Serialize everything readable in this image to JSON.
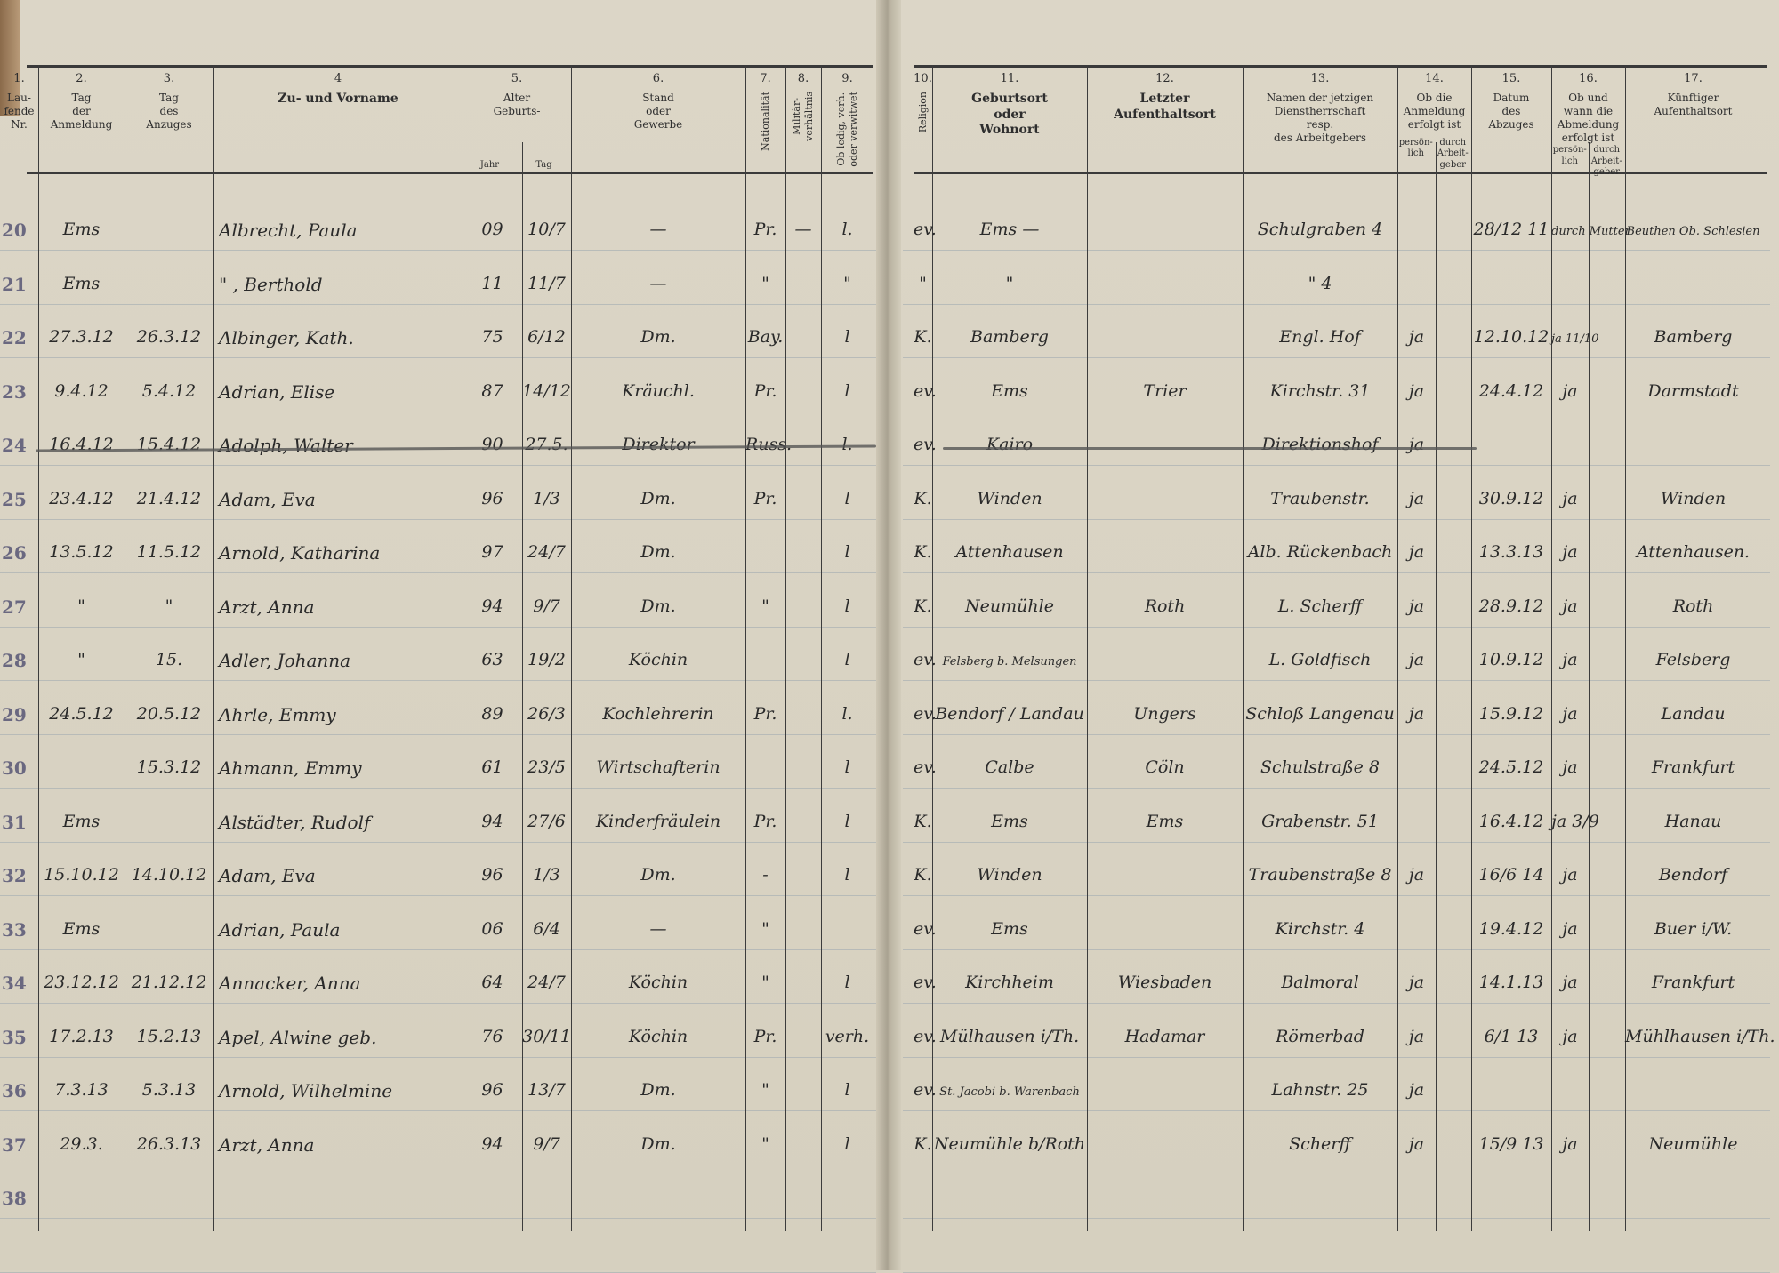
{
  "headers_left": [
    {
      "num": "1.",
      "title": "Lau-\nfende\nNr."
    },
    {
      "num": "2.",
      "title": "Tag\nder\nAnmeldung"
    },
    {
      "num": "3.",
      "title": "Tag\ndes\nAnzuges"
    },
    {
      "num": "4",
      "title": "Zu- und Vorname"
    },
    {
      "num": "5.",
      "title": "Alter\nGeburts-",
      "sub": [
        "Jahr",
        "Tag"
      ]
    },
    {
      "num": "6.",
      "title": "Stand\noder\nGewerbe"
    },
    {
      "num": "7.",
      "title": "Nationalität"
    },
    {
      "num": "8.",
      "title": "Militär-\nverhältnis"
    },
    {
      "num": "9.",
      "title": "Ob ledig, verh.\noder verwitwet"
    }
  ],
  "headers_right": [
    {
      "num": "10.",
      "title": "Religion"
    },
    {
      "num": "11.",
      "title": "Geburtsort\noder\nWohnort"
    },
    {
      "num": "12.",
      "title": "Letzter\nAufenthaltsort"
    },
    {
      "num": "13.",
      "title": "Namen der jetzigen\nDienstherrschaft\nresp.\ndes Arbeitgebers"
    },
    {
      "num": "14.",
      "title": "Ob die\nAnmeldung\nerfolgt ist",
      "sub": [
        "persön-\nlich",
        "durch\nArbeit-\ngeber"
      ]
    },
    {
      "num": "15.",
      "title": "Datum\ndes\nAbzuges"
    },
    {
      "num": "16.",
      "title": "Ob und\nwann die\nAbmeldung\nerfolgt ist",
      "sub": [
        "persön-\nlich",
        "durch\nArbeit-\ngeber"
      ]
    },
    {
      "num": "17.",
      "title": "Künftiger\nAufenthaltsort"
    }
  ],
  "rows": [
    {
      "lfd": "20",
      "anm": "Ems",
      "anz": "",
      "name": "Albrecht, Paula",
      "jahr": "09",
      "tag": "10/7",
      "stand": "—",
      "nat": "Pr.",
      "mil": "—",
      "fam": "l.",
      "rel": "ev.",
      "geb": "Ems —",
      "letzt": "",
      "dienst": "Schulgraben 4",
      "pers": "",
      "arb": "",
      "datum": "28/12 11",
      "abm_pers": "durch Mutter",
      "abm_arb": "",
      "kuenft": "Beuthen Ob. Schlesien"
    },
    {
      "lfd": "21",
      "anm": "Ems",
      "anz": "",
      "name": "\"  , Berthold",
      "jahr": "11",
      "tag": "11/7",
      "stand": "—",
      "nat": "\"",
      "mil": "",
      "fam": "\"",
      "rel": "\"",
      "geb": "\"",
      "letzt": "",
      "dienst": "\" 4",
      "pers": "",
      "arb": "",
      "datum": "",
      "abm_pers": "",
      "abm_arb": "",
      "kuenft": ""
    },
    {
      "lfd": "22",
      "anm": "27.3.12",
      "anz": "26.3.12",
      "name": "Albinger, Kath.",
      "jahr": "75",
      "tag": "6/12",
      "stand": "Dm.",
      "nat": "Bay.",
      "mil": "",
      "fam": "l",
      "rel": "K.",
      "geb": "Bamberg",
      "letzt": "",
      "dienst": "Engl. Hof",
      "pers": "ja",
      "arb": "",
      "datum": "12.10.12",
      "abm_pers": "ja 11/10",
      "abm_arb": "",
      "kuenft": "Bamberg"
    },
    {
      "lfd": "23",
      "anm": "9.4.12",
      "anz": "5.4.12",
      "name": "Adrian, Elise",
      "jahr": "87",
      "tag": "14/12",
      "stand": "Kräuchl.",
      "nat": "Pr.",
      "mil": "",
      "fam": "l",
      "rel": "ev.",
      "geb": "Ems",
      "letzt": "Trier",
      "dienst": "Kirchstr. 31",
      "pers": "ja",
      "arb": "",
      "datum": "24.4.12",
      "abm_pers": "ja",
      "abm_arb": "",
      "kuenft": "Darmstadt"
    },
    {
      "lfd": "24",
      "anm": "16.4.12",
      "anz": "15.4.12",
      "name": "Adolph, Walter",
      "jahr": "90",
      "tag": "27.5.",
      "stand": "Direktor",
      "nat": "Russ.",
      "mil": "",
      "fam": "l.",
      "rel": "ev.",
      "geb": "Kairo",
      "letzt": "",
      "dienst": "Direktionshof",
      "pers": "ja",
      "arb": "",
      "datum": "",
      "abm_pers": "",
      "abm_arb": "",
      "kuenft": "",
      "struck": true
    },
    {
      "lfd": "25",
      "anm": "23.4.12",
      "anz": "21.4.12",
      "name": "Adam, Eva",
      "jahr": "96",
      "tag": "1/3",
      "stand": "Dm.",
      "nat": "Pr.",
      "mil": "",
      "fam": "l",
      "rel": "K.",
      "geb": "Winden",
      "letzt": "",
      "dienst": "Traubenstr.",
      "pers": "ja",
      "arb": "",
      "datum": "30.9.12",
      "abm_pers": "ja",
      "abm_arb": "",
      "kuenft": "Winden"
    },
    {
      "lfd": "26",
      "anm": "13.5.12",
      "anz": "11.5.12",
      "name": "Arnold, Katharina",
      "jahr": "97",
      "tag": "24/7",
      "stand": "Dm.",
      "nat": "",
      "mil": "",
      "fam": "l",
      "rel": "K.",
      "geb": "Attenhausen",
      "letzt": "",
      "dienst": "Alb. Rückenbach",
      "pers": "ja",
      "arb": "",
      "datum": "13.3.13",
      "abm_pers": "ja",
      "abm_arb": "",
      "kuenft": "Attenhausen."
    },
    {
      "lfd": "27",
      "anm": "\"",
      "anz": "\"",
      "name": "Arzt, Anna",
      "jahr": "94",
      "tag": "9/7",
      "stand": "Dm.",
      "nat": "\"",
      "mil": "",
      "fam": "l",
      "rel": "K.",
      "geb": "Neumühle",
      "letzt": "Roth",
      "dienst": "L. Scherff",
      "pers": "ja",
      "arb": "",
      "datum": "28.9.12",
      "abm_pers": "ja",
      "abm_arb": "",
      "kuenft": "Roth"
    },
    {
      "lfd": "28",
      "anm": "\"",
      "anz": "15.",
      "name": "Adler, Johanna",
      "jahr": "63",
      "tag": "19/2",
      "stand": "Köchin",
      "nat": "",
      "mil": "",
      "fam": "l",
      "rel": "ev.",
      "geb": "Felsberg b. Melsungen",
      "letzt": "",
      "dienst": "L. Goldfisch",
      "pers": "ja",
      "arb": "",
      "datum": "10.9.12",
      "abm_pers": "ja",
      "abm_arb": "",
      "kuenft": "Felsberg"
    },
    {
      "lfd": "29",
      "anm": "24.5.12",
      "anz": "20.5.12",
      "name": "Ahrle, Emmy",
      "jahr": "89",
      "tag": "26/3",
      "stand": "Kochlehrerin",
      "nat": "Pr.",
      "mil": "",
      "fam": "l.",
      "rel": "ev.",
      "geb": "Bendorf / Landau",
      "letzt": "Ungers",
      "dienst": "Schloß Langenau",
      "pers": "ja",
      "arb": "",
      "datum": "15.9.12",
      "abm_pers": "ja",
      "abm_arb": "",
      "kuenft": "Landau"
    },
    {
      "lfd": "30",
      "anm": "",
      "anz": "15.3.12",
      "name": "Ahmann, Emmy",
      "jahr": "61",
      "tag": "23/5",
      "stand": "Wirtschafterin",
      "nat": "",
      "mil": "",
      "fam": "l",
      "rel": "ev.",
      "geb": "Calbe",
      "letzt": "Cöln",
      "dienst": "Schulstraße 8",
      "pers": "",
      "arb": "",
      "datum": "24.5.12",
      "abm_pers": "ja",
      "abm_arb": "",
      "kuenft": "Frankfurt"
    },
    {
      "lfd": "31",
      "anm": "Ems",
      "anz": "",
      "name": "Alstädter, Rudolf",
      "jahr": "94",
      "tag": "27/6",
      "stand": "Kinderfräulein",
      "nat": "Pr.",
      "mil": "",
      "fam": "l",
      "rel": "K.",
      "geb": "Ems",
      "letzt": "Ems",
      "dienst": "Grabenstr. 51",
      "pers": "",
      "arb": "",
      "datum": "16.4.12",
      "abm_pers": "ja 3/9",
      "abm_arb": "",
      "kuenft": "Hanau"
    },
    {
      "lfd": "32",
      "anm": "15.10.12",
      "anz": "14.10.12",
      "name": "Adam, Eva",
      "jahr": "96",
      "tag": "1/3",
      "stand": "Dm.",
      "nat": "-",
      "mil": "",
      "fam": "l",
      "rel": "K.",
      "geb": "Winden",
      "letzt": "",
      "dienst": "Traubenstraße 8",
      "pers": "ja",
      "arb": "",
      "datum": "16/6 14",
      "abm_pers": "ja",
      "abm_arb": "",
      "kuenft": "Bendorf"
    },
    {
      "lfd": "33",
      "anm": "Ems",
      "anz": "",
      "name": "Adrian, Paula",
      "jahr": "06",
      "tag": "6/4",
      "stand": "—",
      "nat": "\"",
      "mil": "",
      "fam": "",
      "rel": "ev.",
      "geb": "Ems",
      "letzt": "",
      "dienst": "Kirchstr. 4",
      "pers": "",
      "arb": "",
      "datum": "19.4.12",
      "abm_pers": "ja",
      "abm_arb": "",
      "kuenft": "Buer i/W."
    },
    {
      "lfd": "34",
      "anm": "23.12.12",
      "anz": "21.12.12",
      "name": "Annacker, Anna",
      "jahr": "64",
      "tag": "24/7",
      "stand": "Köchin",
      "nat": "\"",
      "mil": "",
      "fam": "l",
      "rel": "ev.",
      "geb": "Kirchheim",
      "letzt": "Wiesbaden",
      "dienst": "Balmoral",
      "pers": "ja",
      "arb": "",
      "datum": "14.1.13",
      "abm_pers": "ja",
      "abm_arb": "",
      "kuenft": "Frankfurt"
    },
    {
      "lfd": "35",
      "anm": "17.2.13",
      "anz": "15.2.13",
      "name": "Apel, Alwine geb.",
      "jahr": "76",
      "tag": "30/11",
      "stand": "Köchin",
      "nat": "Pr.",
      "mil": "",
      "fam": "verh.",
      "rel": "ev.",
      "geb": "Mülhausen i/Th.",
      "letzt": "Hadamar",
      "dienst": "Römerbad",
      "pers": "ja",
      "arb": "",
      "datum": "6/1 13",
      "abm_pers": "ja",
      "abm_arb": "",
      "kuenft": "Mühlhausen i/Th."
    },
    {
      "lfd": "36",
      "anm": "7.3.13",
      "anz": "5.3.13",
      "name": "Arnold, Wilhelmine",
      "jahr": "96",
      "tag": "13/7",
      "stand": "Dm.",
      "nat": "\"",
      "mil": "",
      "fam": "l",
      "rel": "ev.",
      "geb": "St. Jacobi b. Warenbach",
      "letzt": "",
      "dienst": "Lahnstr. 25",
      "pers": "ja",
      "arb": "",
      "datum": "",
      "abm_pers": "",
      "abm_arb": "",
      "kuenft": ""
    },
    {
      "lfd": "37",
      "anm": "29.3.",
      "anz": "26.3.13",
      "name": "Arzt, Anna",
      "jahr": "94",
      "tag": "9/7",
      "stand": "Dm.",
      "nat": "\"",
      "mil": "",
      "fam": "l",
      "rel": "K.",
      "geb": "Neumühle b/Roth",
      "letzt": "",
      "dienst": "Scherff",
      "pers": "ja",
      "arb": "",
      "datum": "15/9 13",
      "abm_pers": "ja",
      "abm_arb": "",
      "kuenft": "Neumühle"
    },
    {
      "lfd": "38",
      "anm": "",
      "anz": "",
      "name": "",
      "jahr": "",
      "tag": "",
      "stand": "",
      "nat": "",
      "mil": "",
      "fam": "",
      "rel": "",
      "geb": "",
      "letzt": "",
      "dienst": "",
      "pers": "",
      "arb": "",
      "datum": "",
      "abm_pers": "",
      "abm_arb": "",
      "kuenft": ""
    }
  ]
}
